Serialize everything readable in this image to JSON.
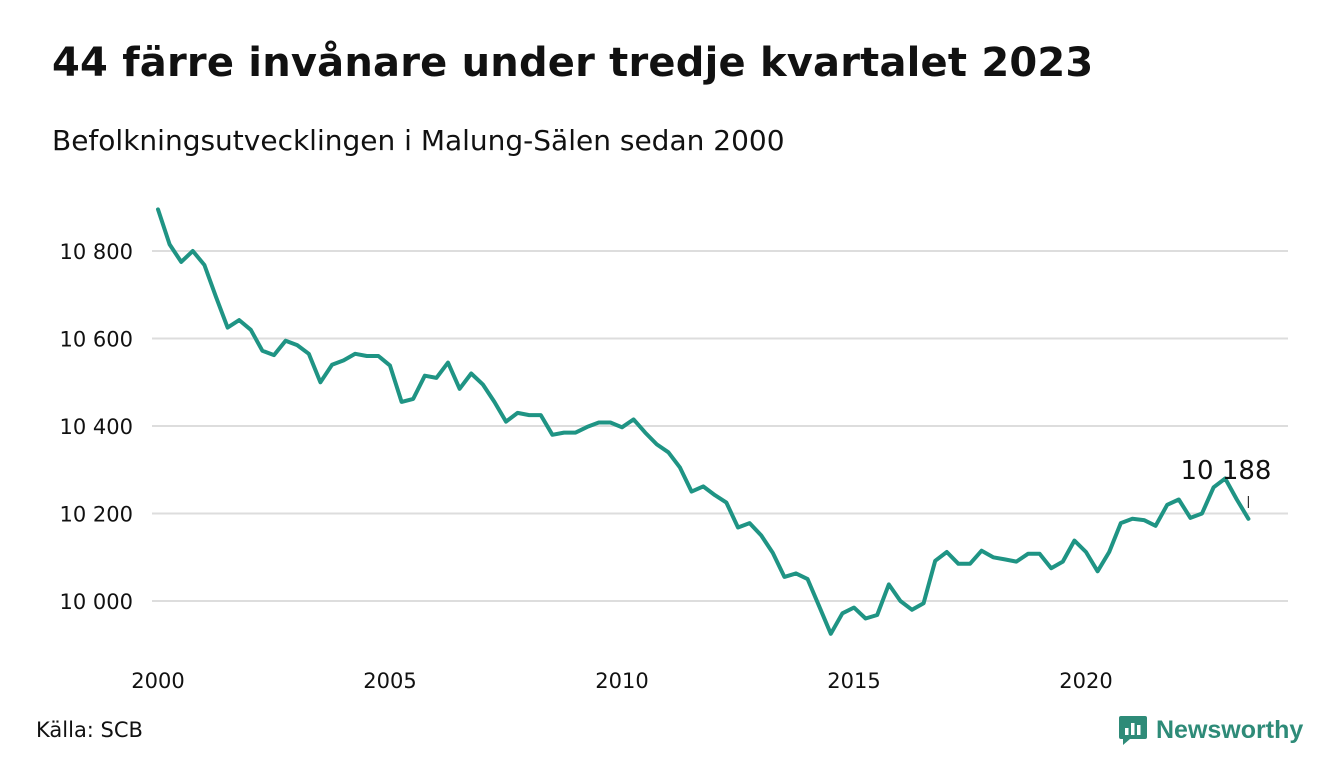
{
  "chart_data": {
    "type": "line",
    "title": "44 färre invånare under tredje kvartalet 2023",
    "subtitle": "Befolkningsutvecklingen i Malung-Sälen sedan 2000",
    "x_ticks": [
      2000,
      2005,
      2010,
      2015,
      2020
    ],
    "x_tick_labels": [
      "2000",
      "2005",
      "2010",
      "2015",
      "2020"
    ],
    "xlim": [
      2000,
      2024.2
    ],
    "y_ticks": [
      10000,
      10200,
      10400,
      10600,
      10800
    ],
    "y_tick_labels": [
      "10 000",
      "10 200",
      "10 400",
      "10 600",
      "10 800"
    ],
    "ylim": [
      9900,
      10910
    ],
    "grid": true,
    "line_color": "#1f9484",
    "end_label": "10 188",
    "series": [
      {
        "x": [
          2000.0,
          2000.25,
          2000.5,
          2000.75,
          2001.0,
          2001.25,
          2001.5,
          2001.75,
          2002.0,
          2002.25,
          2002.5,
          2002.75,
          2003.0,
          2003.25,
          2003.5,
          2003.75,
          2004.0,
          2004.25,
          2004.5,
          2004.75,
          2005.0,
          2005.25,
          2005.5,
          2005.75,
          2006.0,
          2006.25,
          2006.5,
          2006.75,
          2007.0,
          2007.25,
          2007.5,
          2007.75,
          2008.0,
          2008.25,
          2008.5,
          2008.75,
          2009.0,
          2009.25,
          2009.5,
          2009.75,
          2010.0,
          2010.25,
          2010.5,
          2010.75,
          2011.0,
          2011.25,
          2011.5,
          2011.75,
          2012.0,
          2012.25,
          2012.5,
          2012.75,
          2013.0,
          2013.25,
          2013.5,
          2013.75,
          2014.0,
          2014.25,
          2014.5,
          2014.75,
          2015.0,
          2015.25,
          2015.5,
          2015.75,
          2016.0,
          2016.25,
          2016.5,
          2016.75,
          2017.0,
          2017.25,
          2017.5,
          2017.75,
          2018.0,
          2018.25,
          2018.5,
          2018.75,
          2019.0,
          2019.25,
          2019.5,
          2019.75,
          2020.0,
          2020.25,
          2020.5,
          2020.75,
          2021.0,
          2021.25,
          2021.5,
          2021.75,
          2022.0,
          2022.25,
          2022.5,
          2022.75,
          2023.0,
          2023.25,
          2023.5
        ],
        "values": [
          10895,
          10815,
          10775,
          10800,
          10768,
          10695,
          10625,
          10642,
          10620,
          10572,
          10562,
          10595,
          10585,
          10565,
          10500,
          10540,
          10550,
          10565,
          10560,
          10560,
          10538,
          10455,
          10462,
          10515,
          10510,
          10545,
          10485,
          10520,
          10495,
          10455,
          10410,
          10430,
          10425,
          10425,
          10380,
          10385,
          10385,
          10398,
          10408,
          10408,
          10397,
          10415,
          10385,
          10358,
          10340,
          10305,
          10250,
          10262,
          10242,
          10225,
          10168,
          10178,
          10150,
          10110,
          10055,
          10063,
          10050,
          9988,
          9925,
          9972,
          9985,
          9960,
          9968,
          10038,
          10000,
          9980,
          9995,
          10092,
          10112,
          10085,
          10085,
          10115,
          10100,
          10095,
          10090,
          10108,
          10108,
          10075,
          10090,
          10138,
          10112,
          10068,
          10112,
          10178,
          10188,
          10185,
          10172,
          10220,
          10232,
          10190,
          10200,
          10260,
          10280,
          10232,
          10188
        ]
      }
    ]
  },
  "source_label": "Källa: SCB",
  "brand": {
    "name": "Newsworthy",
    "icon": "bar-chart-speech-icon",
    "color": "#2e8b78"
  }
}
